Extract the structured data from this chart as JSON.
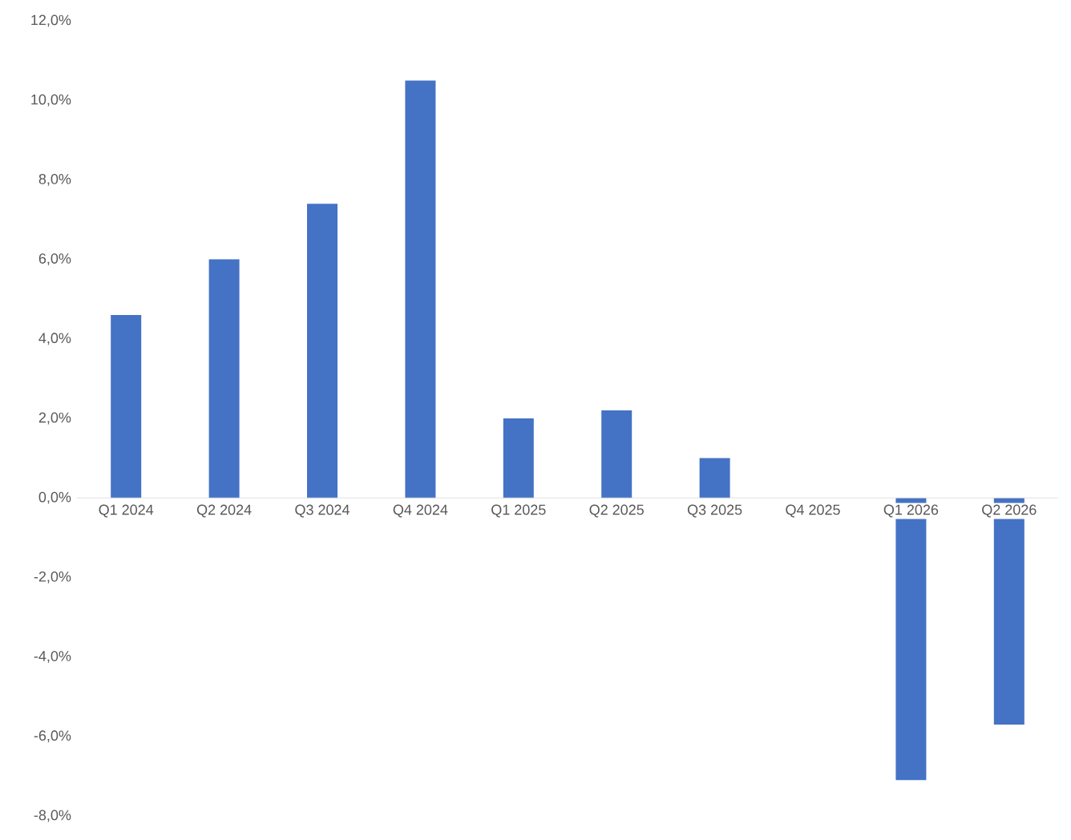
{
  "chart_data": {
    "type": "bar",
    "categories": [
      "Q1 2024",
      "Q2 2024",
      "Q3 2024",
      "Q4 2024",
      "Q1 2025",
      "Q2 2025",
      "Q3 2025",
      "Q4 2025",
      "Q1 2026",
      "Q2 2026"
    ],
    "values": [
      4.6,
      6.0,
      7.4,
      10.5,
      2.0,
      2.2,
      1.0,
      0,
      -7.1,
      -5.7
    ],
    "color": "#4472c4",
    "ylim": [
      -8,
      12
    ],
    "yticks": [
      {
        "value": -8,
        "label": "-8,0%"
      },
      {
        "value": -6,
        "label": "-6,0%"
      },
      {
        "value": -4,
        "label": "-4,0%"
      },
      {
        "value": -2,
        "label": "-2,0%"
      },
      {
        "value": 0,
        "label": "0,0%"
      },
      {
        "value": 2,
        "label": "2,0%"
      },
      {
        "value": 4,
        "label": "4,0%"
      },
      {
        "value": 6,
        "label": "6,0%"
      },
      {
        "value": 8,
        "label": "8,0%"
      },
      {
        "value": 10,
        "label": "10,0%"
      },
      {
        "value": 12,
        "label": "12,0%"
      }
    ]
  }
}
